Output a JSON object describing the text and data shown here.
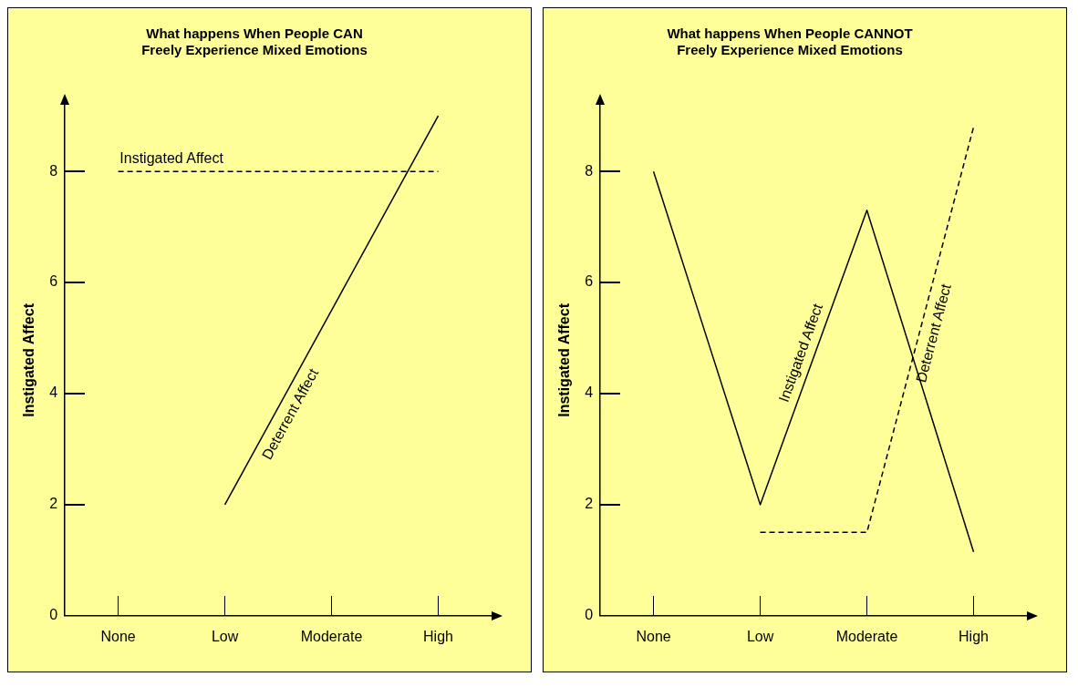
{
  "chart_data": [
    {
      "type": "line",
      "title": "What happens When People CAN\nFreely Experience Mixed Emotions",
      "ylabel": "Instigated Affect",
      "categories": [
        "None",
        "Low",
        "Moderate",
        "High"
      ],
      "ylim": [
        0,
        9.2
      ],
      "yticks": [
        0,
        2,
        4,
        6,
        8
      ],
      "grid": false,
      "legend": false,
      "marker": "none",
      "series": [
        {
          "name": "Instigated Affect",
          "color": "#000000",
          "line_style": "dashed",
          "values": [
            8,
            8,
            8,
            8
          ]
        },
        {
          "name": "Deterrent Affect",
          "color": "#000000",
          "line_style": "solid",
          "values": [
            null,
            2,
            5.5,
            9.0
          ]
        }
      ]
    },
    {
      "type": "line",
      "title": "What happens When People CANNOT\nFreely Experience Mixed Emotions",
      "ylabel": "Instigated Affect",
      "categories": [
        "None",
        "Low",
        "Moderate",
        "High"
      ],
      "ylim": [
        0,
        9.2
      ],
      "yticks": [
        0,
        2,
        4,
        6,
        8
      ],
      "grid": false,
      "legend": false,
      "marker": "none",
      "series": [
        {
          "name": "Instigated Affect",
          "color": "#000000",
          "line_style": "solid",
          "values": [
            8,
            2,
            7.3,
            1.15
          ]
        },
        {
          "name": "Deterrent Affect",
          "color": "#000000",
          "line_style": "dashed",
          "values": [
            null,
            1.5,
            1.5,
            8.8
          ]
        }
      ]
    }
  ]
}
